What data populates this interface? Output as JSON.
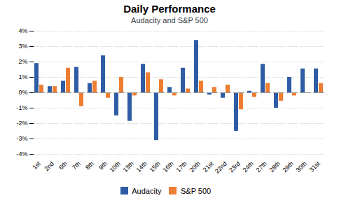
{
  "chart_data": {
    "type": "bar",
    "title": "Daily Performance",
    "subtitle": "Audacity and S&P 500",
    "categories": [
      "1st",
      "2nd",
      "6th",
      "7th",
      "8th",
      "9th",
      "10th",
      "13th",
      "14th",
      "15th",
      "16th",
      "17th",
      "20th",
      "21st",
      "22nd",
      "23rd",
      "24th",
      "27th",
      "28th",
      "29th",
      "30th",
      "31st"
    ],
    "series": [
      {
        "name": "Audacity",
        "color": "#2E5DA6",
        "values": [
          1.9,
          0.4,
          0.75,
          1.65,
          0.6,
          2.4,
          -1.5,
          -1.85,
          1.85,
          -3.1,
          0.35,
          1.6,
          3.4,
          -0.15,
          -0.35,
          -2.5,
          0.1,
          1.85,
          -1.0,
          1.0,
          1.55,
          1.55
        ]
      },
      {
        "name": "S&P 500",
        "color": "#ED7D31",
        "values": [
          0.5,
          0.4,
          1.6,
          -0.9,
          0.75,
          -0.35,
          1.0,
          -0.2,
          1.3,
          0.85,
          -0.2,
          0.25,
          0.75,
          0.35,
          0.5,
          -1.1,
          -0.3,
          0.6,
          -0.55,
          -0.2,
          0.0,
          0.6
        ]
      }
    ],
    "ylim": [
      -4,
      4
    ],
    "yticks": [
      {
        "value": -4,
        "label": "-4%"
      },
      {
        "value": -3,
        "label": "-3%"
      },
      {
        "value": -2,
        "label": "-2%"
      },
      {
        "value": -1,
        "label": "-1%"
      },
      {
        "value": 0,
        "label": "0%"
      },
      {
        "value": 1,
        "label": "1%"
      },
      {
        "value": 2,
        "label": "2%"
      },
      {
        "value": 3,
        "label": "3%"
      },
      {
        "value": 4,
        "label": "4%"
      }
    ],
    "grid": true,
    "legend": "bottom"
  }
}
